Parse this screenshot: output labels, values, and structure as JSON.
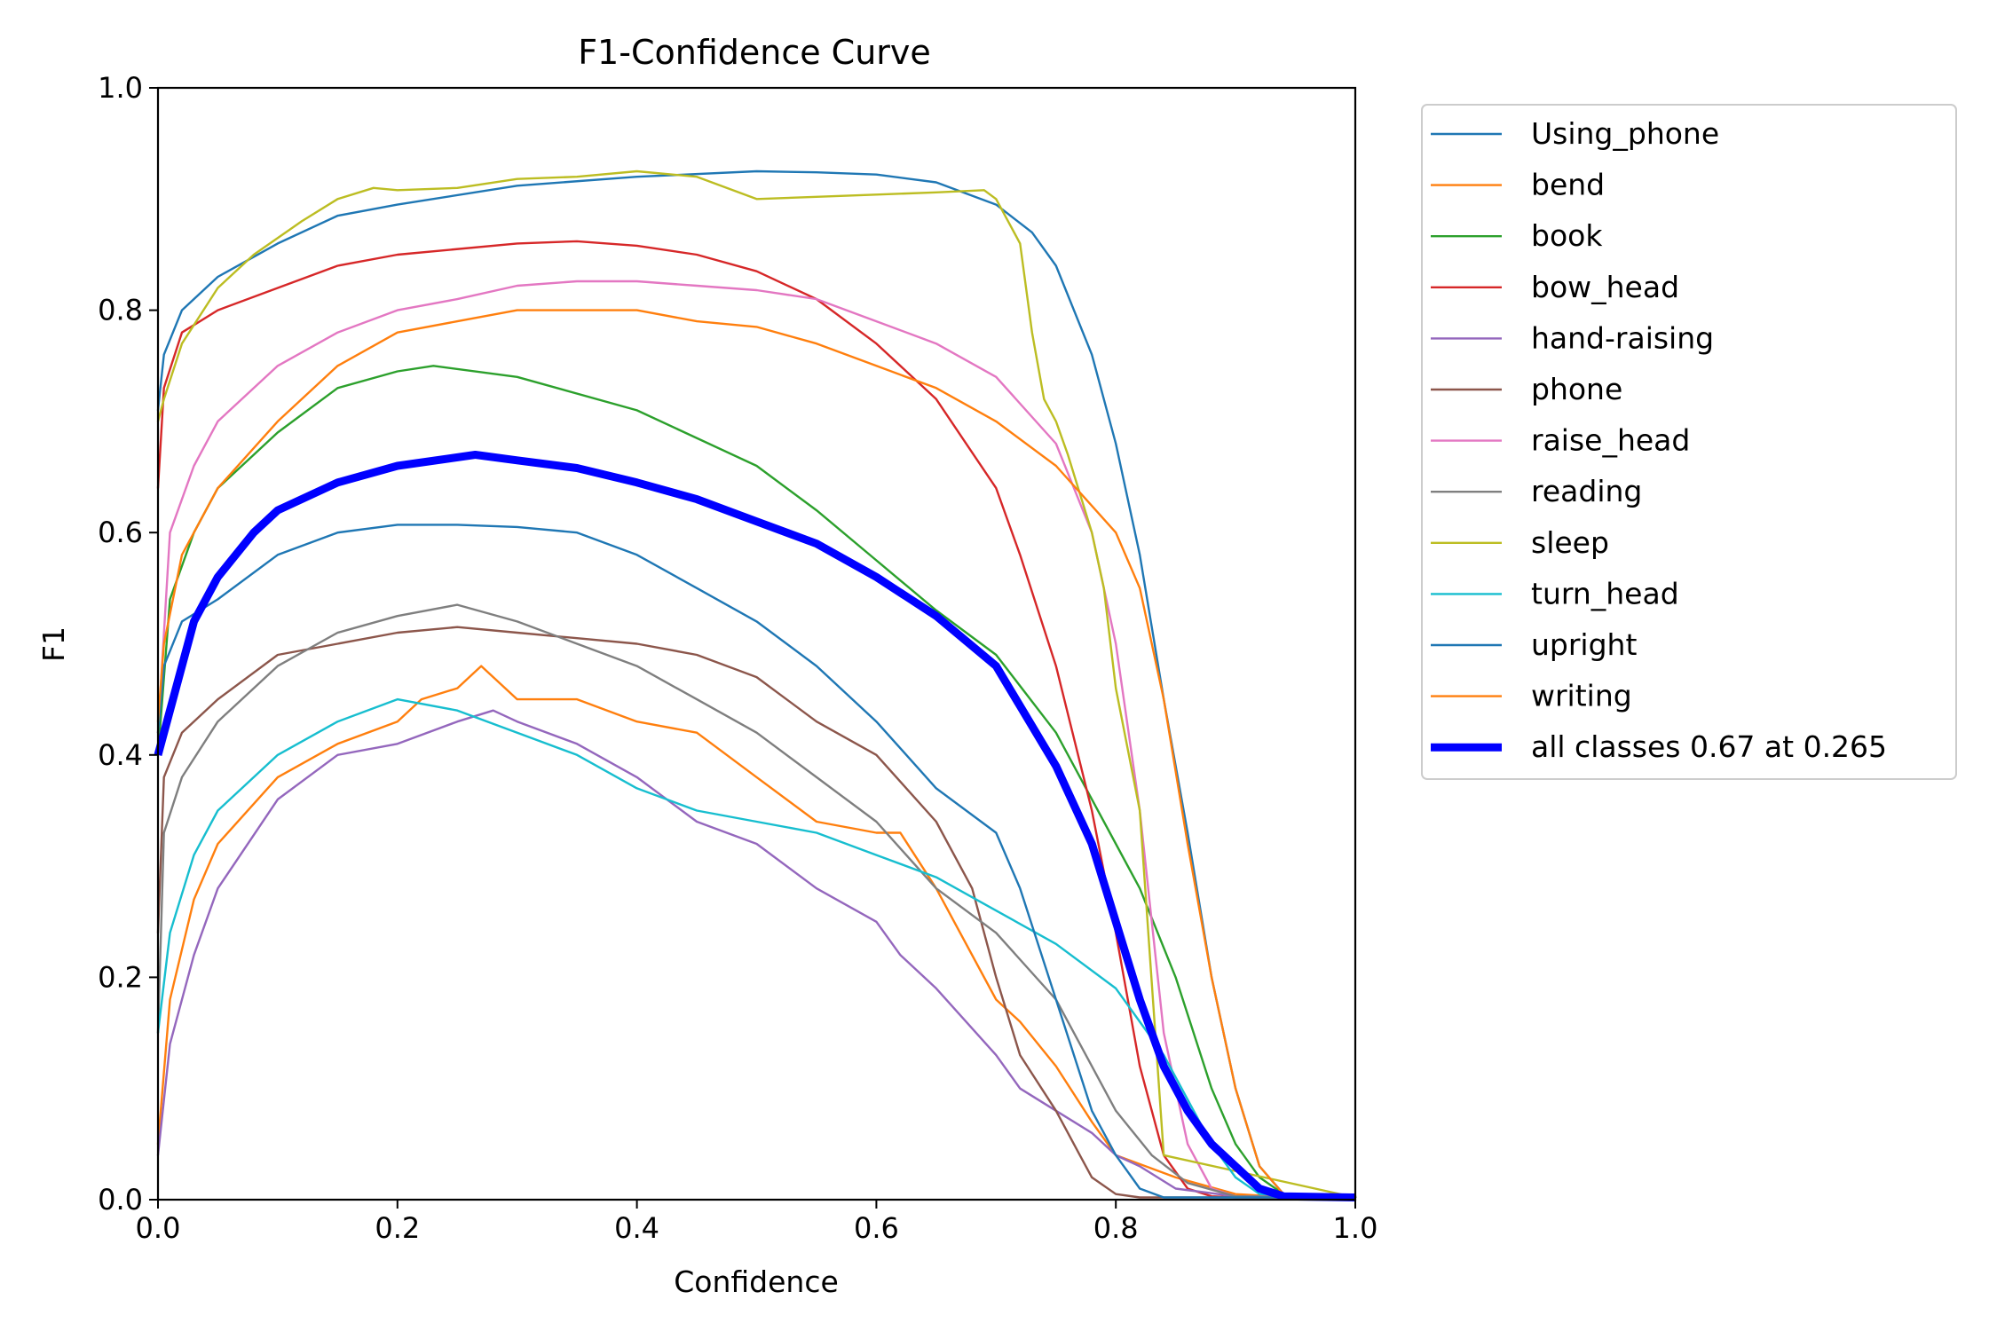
{
  "chart_data": {
    "type": "line",
    "title": "F1-Confidence Curve",
    "xlabel": "Confidence",
    "ylabel": "F1",
    "xlim": [
      0.0,
      1.0
    ],
    "ylim": [
      0.0,
      1.0
    ],
    "xticks": [
      "0.0",
      "0.2",
      "0.4",
      "0.6",
      "0.8",
      "1.0"
    ],
    "yticks": [
      "0.0",
      "0.2",
      "0.4",
      "0.6",
      "0.8",
      "1.0"
    ],
    "grid": false,
    "legend_position": "outside-right",
    "series": [
      {
        "name": "Using_phone",
        "color": "#1f77b4",
        "x": [
          0,
          0.005,
          0.02,
          0.05,
          0.1,
          0.15,
          0.2,
          0.3,
          0.4,
          0.5,
          0.55,
          0.6,
          0.65,
          0.7,
          0.73,
          0.75,
          0.78,
          0.8,
          0.82,
          0.84,
          0.86,
          0.88,
          0.9,
          0.92,
          0.94,
          1.0
        ],
        "values": [
          0.71,
          0.76,
          0.8,
          0.83,
          0.86,
          0.885,
          0.895,
          0.912,
          0.92,
          0.925,
          0.924,
          0.922,
          0.915,
          0.895,
          0.87,
          0.84,
          0.76,
          0.68,
          0.58,
          0.45,
          0.33,
          0.2,
          0.1,
          0.03,
          0.005,
          0.003
        ]
      },
      {
        "name": "bend",
        "color": "#ff7f0e",
        "x": [
          0,
          0.01,
          0.03,
          0.05,
          0.1,
          0.15,
          0.2,
          0.22,
          0.25,
          0.27,
          0.3,
          0.35,
          0.4,
          0.45,
          0.5,
          0.55,
          0.6,
          0.62,
          0.65,
          0.7,
          0.72,
          0.75,
          0.78,
          0.8,
          0.85,
          0.9,
          0.93,
          1.0
        ],
        "values": [
          0.05,
          0.18,
          0.27,
          0.32,
          0.38,
          0.41,
          0.43,
          0.45,
          0.46,
          0.48,
          0.45,
          0.45,
          0.43,
          0.42,
          0.38,
          0.34,
          0.33,
          0.33,
          0.28,
          0.18,
          0.16,
          0.12,
          0.07,
          0.04,
          0.02,
          0.005,
          0.003,
          0.003
        ]
      },
      {
        "name": "book",
        "color": "#2ca02c",
        "x": [
          0,
          0.01,
          0.03,
          0.05,
          0.1,
          0.15,
          0.2,
          0.23,
          0.3,
          0.4,
          0.5,
          0.55,
          0.6,
          0.65,
          0.7,
          0.75,
          0.8,
          0.82,
          0.85,
          0.88,
          0.9,
          0.92,
          0.94,
          1.0
        ],
        "values": [
          0.4,
          0.54,
          0.6,
          0.64,
          0.69,
          0.73,
          0.745,
          0.75,
          0.74,
          0.71,
          0.66,
          0.62,
          0.575,
          0.53,
          0.49,
          0.42,
          0.32,
          0.28,
          0.2,
          0.1,
          0.05,
          0.02,
          0.005,
          0.003
        ]
      },
      {
        "name": "bow_head",
        "color": "#d62728",
        "x": [
          0,
          0.005,
          0.02,
          0.05,
          0.1,
          0.15,
          0.2,
          0.3,
          0.35,
          0.4,
          0.45,
          0.5,
          0.55,
          0.6,
          0.65,
          0.7,
          0.72,
          0.75,
          0.78,
          0.8,
          0.82,
          0.84,
          0.86,
          0.88,
          0.9,
          1.0
        ],
        "values": [
          0.64,
          0.73,
          0.78,
          0.8,
          0.82,
          0.84,
          0.85,
          0.86,
          0.862,
          0.858,
          0.85,
          0.835,
          0.81,
          0.77,
          0.72,
          0.64,
          0.58,
          0.48,
          0.35,
          0.24,
          0.12,
          0.04,
          0.01,
          0.003,
          0.002,
          0.002
        ]
      },
      {
        "name": "hand-raising",
        "color": "#9467bd",
        "x": [
          0,
          0.01,
          0.03,
          0.05,
          0.1,
          0.15,
          0.2,
          0.25,
          0.28,
          0.3,
          0.35,
          0.4,
          0.45,
          0.5,
          0.55,
          0.6,
          0.62,
          0.65,
          0.7,
          0.72,
          0.75,
          0.78,
          0.8,
          0.82,
          0.85,
          0.9,
          1.0
        ],
        "values": [
          0.04,
          0.14,
          0.22,
          0.28,
          0.36,
          0.4,
          0.41,
          0.43,
          0.44,
          0.43,
          0.41,
          0.38,
          0.34,
          0.32,
          0.28,
          0.25,
          0.22,
          0.19,
          0.13,
          0.1,
          0.08,
          0.06,
          0.04,
          0.03,
          0.01,
          0.003,
          0.002
        ]
      },
      {
        "name": "phone",
        "color": "#8c564b",
        "x": [
          0,
          0.005,
          0.02,
          0.05,
          0.1,
          0.15,
          0.2,
          0.25,
          0.3,
          0.35,
          0.4,
          0.45,
          0.5,
          0.55,
          0.6,
          0.65,
          0.68,
          0.7,
          0.72,
          0.75,
          0.77,
          0.78,
          0.8,
          0.82,
          1.0
        ],
        "values": [
          0.24,
          0.38,
          0.42,
          0.45,
          0.49,
          0.5,
          0.51,
          0.515,
          0.51,
          0.505,
          0.5,
          0.49,
          0.47,
          0.43,
          0.4,
          0.34,
          0.28,
          0.2,
          0.13,
          0.08,
          0.04,
          0.02,
          0.005,
          0.002,
          0.002
        ]
      },
      {
        "name": "raise_head",
        "color": "#e377c2",
        "x": [
          0,
          0.01,
          0.03,
          0.05,
          0.1,
          0.15,
          0.2,
          0.25,
          0.3,
          0.35,
          0.4,
          0.45,
          0.5,
          0.55,
          0.6,
          0.65,
          0.7,
          0.75,
          0.78,
          0.8,
          0.82,
          0.84,
          0.86,
          0.88,
          0.9,
          1.0
        ],
        "values": [
          0.42,
          0.6,
          0.66,
          0.7,
          0.75,
          0.78,
          0.8,
          0.81,
          0.822,
          0.826,
          0.826,
          0.822,
          0.818,
          0.81,
          0.79,
          0.77,
          0.74,
          0.68,
          0.6,
          0.5,
          0.35,
          0.15,
          0.05,
          0.01,
          0.003,
          0.002
        ]
      },
      {
        "name": "reading",
        "color": "#7f7f7f",
        "x": [
          0,
          0.005,
          0.02,
          0.05,
          0.1,
          0.15,
          0.2,
          0.25,
          0.3,
          0.35,
          0.4,
          0.45,
          0.5,
          0.55,
          0.6,
          0.65,
          0.7,
          0.75,
          0.78,
          0.8,
          0.83,
          0.86,
          0.9,
          1.0
        ],
        "values": [
          0.15,
          0.33,
          0.38,
          0.43,
          0.48,
          0.51,
          0.525,
          0.535,
          0.52,
          0.5,
          0.48,
          0.45,
          0.42,
          0.38,
          0.34,
          0.28,
          0.24,
          0.18,
          0.12,
          0.08,
          0.04,
          0.015,
          0.003,
          0.002
        ]
      },
      {
        "name": "sleep",
        "color": "#bcbd22",
        "x": [
          0,
          0.005,
          0.02,
          0.05,
          0.08,
          0.12,
          0.15,
          0.18,
          0.2,
          0.25,
          0.3,
          0.35,
          0.4,
          0.45,
          0.5,
          0.55,
          0.6,
          0.65,
          0.69,
          0.7,
          0.72,
          0.73,
          0.74,
          0.75,
          0.76,
          0.78,
          0.79,
          0.8,
          0.82,
          0.84,
          1.0
        ],
        "values": [
          0.7,
          0.72,
          0.77,
          0.82,
          0.85,
          0.88,
          0.9,
          0.91,
          0.908,
          0.91,
          0.918,
          0.92,
          0.925,
          0.92,
          0.9,
          0.902,
          0.904,
          0.906,
          0.908,
          0.9,
          0.86,
          0.78,
          0.72,
          0.7,
          0.67,
          0.6,
          0.55,
          0.46,
          0.35,
          0.04,
          0.002
        ]
      },
      {
        "name": "turn_head",
        "color": "#17becf",
        "x": [
          0,
          0.01,
          0.03,
          0.05,
          0.1,
          0.15,
          0.2,
          0.25,
          0.3,
          0.35,
          0.4,
          0.45,
          0.5,
          0.55,
          0.6,
          0.65,
          0.7,
          0.75,
          0.8,
          0.82,
          0.84,
          0.86,
          0.88,
          0.9,
          0.92,
          1.0
        ],
        "values": [
          0.15,
          0.24,
          0.31,
          0.35,
          0.4,
          0.43,
          0.45,
          0.44,
          0.42,
          0.4,
          0.37,
          0.35,
          0.34,
          0.33,
          0.31,
          0.29,
          0.26,
          0.23,
          0.19,
          0.16,
          0.13,
          0.09,
          0.05,
          0.02,
          0.005,
          0.002
        ]
      },
      {
        "name": "upright",
        "color": "#1f77b4",
        "x": [
          0,
          0.005,
          0.02,
          0.05,
          0.1,
          0.15,
          0.2,
          0.25,
          0.3,
          0.35,
          0.4,
          0.45,
          0.5,
          0.55,
          0.6,
          0.65,
          0.7,
          0.72,
          0.75,
          0.78,
          0.8,
          0.82,
          0.84,
          1.0
        ],
        "values": [
          0.42,
          0.48,
          0.52,
          0.54,
          0.58,
          0.6,
          0.607,
          0.607,
          0.605,
          0.6,
          0.58,
          0.55,
          0.52,
          0.48,
          0.43,
          0.37,
          0.33,
          0.28,
          0.18,
          0.08,
          0.04,
          0.01,
          0.002,
          0.002
        ]
      },
      {
        "name": "writing",
        "color": "#ff7f0e",
        "x": [
          0,
          0.005,
          0.02,
          0.05,
          0.1,
          0.15,
          0.2,
          0.25,
          0.3,
          0.35,
          0.4,
          0.45,
          0.5,
          0.55,
          0.6,
          0.65,
          0.7,
          0.75,
          0.8,
          0.82,
          0.84,
          0.86,
          0.88,
          0.9,
          0.92,
          0.94,
          1.0
        ],
        "values": [
          0.43,
          0.5,
          0.58,
          0.64,
          0.7,
          0.75,
          0.78,
          0.79,
          0.8,
          0.8,
          0.8,
          0.79,
          0.785,
          0.77,
          0.75,
          0.73,
          0.7,
          0.66,
          0.6,
          0.55,
          0.45,
          0.32,
          0.2,
          0.1,
          0.03,
          0.005,
          0.003
        ]
      },
      {
        "name": "all classes 0.67 at 0.265",
        "color": "#0000ff",
        "bold": true,
        "x": [
          0,
          0.01,
          0.03,
          0.05,
          0.08,
          0.1,
          0.15,
          0.2,
          0.265,
          0.3,
          0.35,
          0.4,
          0.45,
          0.5,
          0.55,
          0.6,
          0.65,
          0.7,
          0.75,
          0.78,
          0.8,
          0.82,
          0.84,
          0.86,
          0.88,
          0.9,
          0.92,
          0.94,
          1.0
        ],
        "values": [
          0.4,
          0.44,
          0.52,
          0.56,
          0.6,
          0.62,
          0.645,
          0.66,
          0.67,
          0.665,
          0.658,
          0.645,
          0.63,
          0.61,
          0.59,
          0.56,
          0.525,
          0.48,
          0.39,
          0.32,
          0.25,
          0.18,
          0.12,
          0.08,
          0.05,
          0.03,
          0.01,
          0.003,
          0.002
        ]
      }
    ]
  }
}
